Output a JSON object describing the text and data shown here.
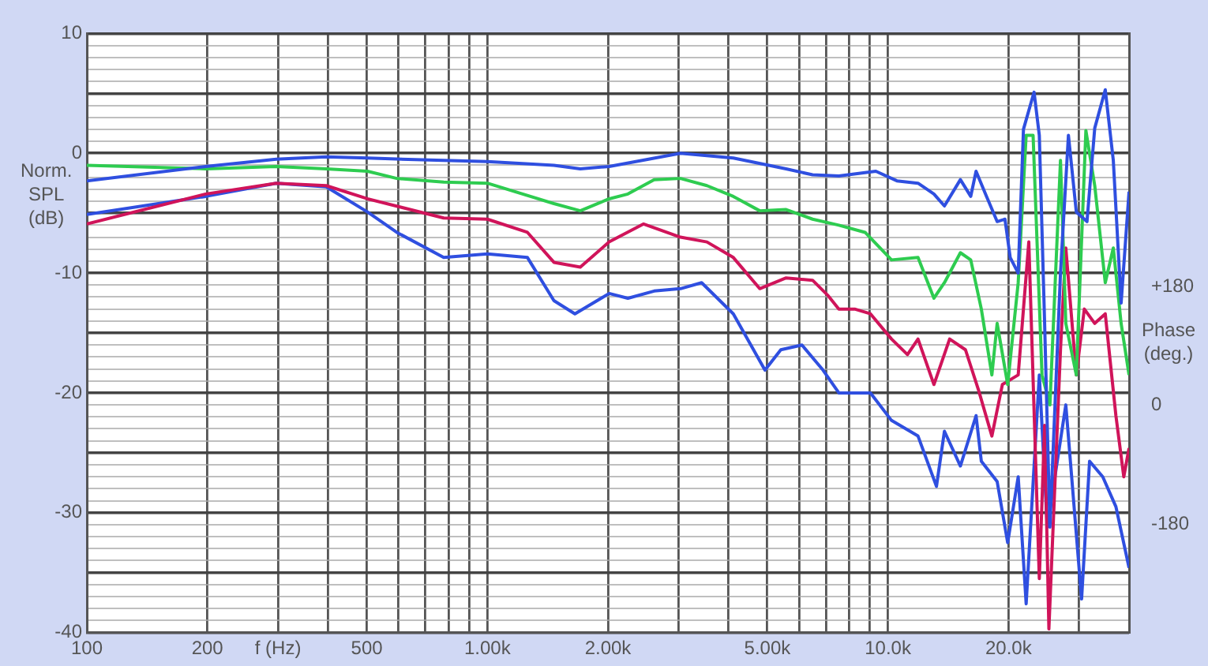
{
  "chart_data": {
    "type": "line",
    "ylabel": "Norm. SPL (dB)",
    "y2label": "Phase (deg.)",
    "log": "x",
    "grid": true,
    "legend": false,
    "xlim": [
      100,
      40000
    ],
    "ylim": [
      -40,
      10
    ],
    "y2lim": [
      -350,
      557
    ],
    "xticks": [
      100,
      {
        "value": 200,
        "label": "200"
      },
      {
        "value": 300,
        "label": "f (Hz)"
      },
      {
        "value": 400,
        "label": null
      },
      500,
      {
        "value": 600,
        "label": null
      },
      {
        "value": 700,
        "label": null
      },
      {
        "value": 800,
        "label": null
      },
      {
        "value": 900,
        "label": null
      },
      {
        "value": 1000,
        "label": "1.00k"
      },
      {
        "value": 2000,
        "label": "2.00k"
      },
      {
        "value": 3000,
        "label": null
      },
      {
        "value": 4000,
        "label": null
      },
      {
        "value": 5000,
        "label": "5.00k"
      },
      {
        "value": 6000,
        "label": null
      },
      {
        "value": 7000,
        "label": null
      },
      {
        "value": 8000,
        "label": null
      },
      {
        "value": 9000,
        "label": null
      },
      {
        "value": 10000,
        "label": "10.0k"
      },
      {
        "value": 20000,
        "label": "20.0k"
      },
      {
        "value": 30000,
        "label": null
      },
      {
        "value": 40000,
        "label": null
      }
    ],
    "yticks": [
      -40,
      {
        "value": -39,
        "label": null
      },
      {
        "value": -38,
        "label": null
      },
      {
        "value": -37,
        "label": null
      },
      {
        "value": -36,
        "label": null
      },
      {
        "value": -35,
        "label": null
      },
      {
        "value": -34,
        "label": null
      },
      {
        "value": -33,
        "label": null
      },
      {
        "value": -32,
        "label": null
      },
      {
        "value": -31,
        "label": null
      },
      -30,
      {
        "value": -29,
        "label": null
      },
      {
        "value": -28,
        "label": null
      },
      {
        "value": -27,
        "label": null
      },
      {
        "value": -26,
        "label": null
      },
      {
        "value": -25,
        "label": null
      },
      {
        "value": -24,
        "label": null
      },
      {
        "value": -23,
        "label": null
      },
      {
        "value": -22,
        "label": null
      },
      {
        "value": -21,
        "label": null
      },
      -20,
      {
        "value": -19,
        "label": null
      },
      {
        "value": -18,
        "label": null
      },
      {
        "value": -17,
        "label": null
      },
      {
        "value": -16,
        "label": null
      },
      {
        "value": -15,
        "label": null
      },
      {
        "value": -14,
        "label": null
      },
      {
        "value": -13,
        "label": null
      },
      {
        "value": -12,
        "label": null
      },
      {
        "value": -11,
        "label": null
      },
      -10,
      {
        "value": -9,
        "label": null
      },
      {
        "value": -8,
        "label": null
      },
      {
        "value": -7,
        "label": null
      },
      {
        "value": -6,
        "label": null
      },
      {
        "value": -5,
        "label": null
      },
      {
        "value": -4,
        "label": null
      },
      {
        "value": -3,
        "label": null
      },
      {
        "value": -2,
        "label": null
      },
      {
        "value": -1,
        "label": null
      },
      0,
      {
        "value": 1,
        "label": null
      },
      {
        "value": 2,
        "label": null
      },
      {
        "value": 3,
        "label": null
      },
      {
        "value": 4,
        "label": null
      },
      {
        "value": 5,
        "label": null
      },
      {
        "value": 6,
        "label": null
      },
      {
        "value": 7,
        "label": null
      },
      {
        "value": 8,
        "label": null
      },
      {
        "value": 9,
        "label": null
      },
      10
    ],
    "y2ticks": [
      {
        "value": -180,
        "label": "-180"
      },
      0,
      {
        "value": 180,
        "label": "+180"
      }
    ],
    "series": [
      {
        "color": "#2f4fe0",
        "x": [
          100,
          198,
          297,
          396,
          502,
          778,
          1000,
          1466,
          1706,
          2014,
          3035,
          4112,
          5570,
          6486,
          7543,
          9330,
          10530,
          11890,
          13030,
          13840,
          15170,
          16100,
          16600,
          17630,
          18740,
          19600,
          20200,
          21150,
          21800,
          23170,
          23880,
          24620,
          25380,
          26970,
          28230,
          29540,
          31410,
          32840,
          34890,
          36540,
          38220,
          40000
        ],
        "values": [
          -2.3,
          -1.1,
          -0.5,
          -0.3,
          -0.4,
          -0.6,
          -0.7,
          -1.0,
          -1.3,
          -1.1,
          0,
          -0.4,
          -1.3,
          -1.8,
          -1.9,
          -1.5,
          -2.3,
          -2.5,
          -3.4,
          -4.4,
          -2.2,
          -3.6,
          -1.5,
          -3.6,
          -5.7,
          -5.5,
          -8.7,
          -10,
          2.0,
          5.1,
          1.5,
          -14.2,
          -31.2,
          -10,
          1.5,
          -4.9,
          -5.7,
          2.1,
          5.3,
          -0.6,
          -12.5,
          -3.2
        ]
      },
      {
        "color": "#2ecc50",
        "x": [
          100,
          198,
          297,
          396,
          502,
          594,
          778,
          1000,
          1466,
          1706,
          2014,
          2243,
          2608,
          3035,
          3533,
          4112,
          4786,
          5570,
          6486,
          7543,
          8770,
          10210,
          11890,
          13030,
          13840,
          15170,
          16100,
          17110,
          18180,
          18740,
          19910,
          21150,
          22140,
          23040,
          24250,
          25380,
          26970,
          27810,
          29540,
          31210,
          32840,
          34890,
          36540,
          38220,
          40000
        ],
        "values": [
          -1.0,
          -1.3,
          -1.1,
          -1.3,
          -1.5,
          -2.1,
          -2.4,
          -2.5,
          -4.2,
          -4.8,
          -3.8,
          -3.4,
          -2.2,
          -2.1,
          -2.7,
          -3.6,
          -4.8,
          -4.7,
          -5.5,
          -6.0,
          -6.6,
          -8.9,
          -8.7,
          -12.1,
          -10.8,
          -8.3,
          -8.9,
          -13.0,
          -18.5,
          -14.2,
          -19.3,
          -10.8,
          1.5,
          1.5,
          -18.5,
          -21.0,
          -0.6,
          -14.2,
          -18.5,
          1.9,
          -2.7,
          -10.8,
          -7.9,
          -14.2,
          -18.5
        ]
      },
      {
        "color": "#d0145a",
        "x": [
          100,
          198,
          297,
          396,
          502,
          778,
          1000,
          1259,
          1466,
          1706,
          2014,
          2455,
          3035,
          3533,
          4112,
          4786,
          5570,
          6486,
          7098,
          7543,
          8260,
          9046,
          10210,
          11190,
          11890,
          13030,
          14260,
          15620,
          16850,
          18180,
          19310,
          21150,
          22480,
          23880,
          24620,
          25230,
          26970,
          27810,
          29540,
          30930,
          32840,
          34890,
          37090,
          38810,
          40000
        ],
        "values": [
          -5.9,
          -3.4,
          -2.5,
          -2.7,
          -3.8,
          -5.4,
          -5.5,
          -6.6,
          -9.1,
          -9.5,
          -7.4,
          -5.9,
          -7.0,
          -7.4,
          -8.7,
          -11.3,
          -10.4,
          -10.6,
          -11.9,
          -13.0,
          -13.0,
          -13.4,
          -15.5,
          -16.8,
          -15.5,
          -19.3,
          -15.5,
          -16.4,
          -19.8,
          -23.6,
          -19.3,
          -18.5,
          -7.4,
          -35.5,
          -22.7,
          -39.7,
          -16.4,
          -7.9,
          -18.5,
          -13.0,
          -14.2,
          -13.4,
          -21.9,
          -27.0,
          -24.6
        ]
      },
      {
        "color": "#2f4fe0",
        "x": [
          100,
          198,
          297,
          396,
          502,
          594,
          778,
          1000,
          1259,
          1466,
          1654,
          2014,
          2243,
          2608,
          3035,
          3427,
          4112,
          4932,
          5403,
          6101,
          6887,
          7543,
          9046,
          10210,
          11890,
          13220,
          13840,
          15170,
          16600,
          17110,
          18740,
          19910,
          21150,
          22140,
          23880,
          25000,
          27810,
          30450,
          31880,
          34390,
          37090,
          40000
        ],
        "values": [
          -5.1,
          -3.6,
          -2.5,
          -2.8,
          -4.9,
          -6.6,
          -8.7,
          -8.4,
          -8.7,
          -12.3,
          -13.4,
          -11.7,
          -12.1,
          -11.5,
          -11.3,
          -10.8,
          -13.4,
          -18.1,
          -16.4,
          -16.0,
          -18.1,
          -20.0,
          -20.0,
          -22.3,
          -23.6,
          -27.8,
          -23.2,
          -26.1,
          -21.9,
          -25.7,
          -27.4,
          -32.5,
          -27.0,
          -37.6,
          -18.5,
          -31.2,
          -21.0,
          -37.2,
          -25.7,
          -27.0,
          -29.5,
          -34.6
        ]
      }
    ]
  }
}
